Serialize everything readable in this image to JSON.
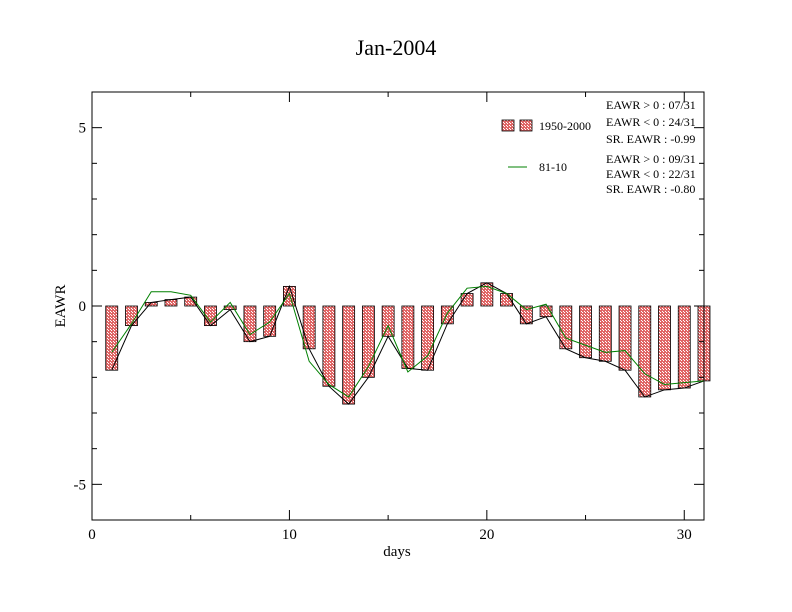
{
  "chart_data": {
    "type": "bar",
    "title": "Jan-2004",
    "xlabel": "days",
    "ylabel": "EAWR",
    "xlim": [
      0,
      31
    ],
    "ylim": [
      -6,
      6
    ],
    "x_ticks": [
      0,
      10,
      20,
      30
    ],
    "y_ticks": [
      -5,
      0,
      5
    ],
    "grid": false,
    "legend_position": "top-right",
    "days": [
      1,
      2,
      3,
      4,
      5,
      6,
      7,
      8,
      9,
      10,
      11,
      12,
      13,
      14,
      15,
      16,
      17,
      18,
      19,
      20,
      21,
      22,
      23,
      24,
      25,
      26,
      27,
      28,
      29,
      30,
      31
    ],
    "series": [
      {
        "name": "1950-2000",
        "kind": "bar",
        "color": "#e06666",
        "values": [
          -1.8,
          -0.55,
          0.1,
          0.18,
          0.25,
          -0.55,
          -0.1,
          -1.0,
          -0.85,
          0.55,
          -1.2,
          -2.25,
          -2.75,
          -2.0,
          -0.85,
          -1.75,
          -1.8,
          -0.5,
          0.35,
          0.65,
          0.35,
          -0.5,
          -0.3,
          -1.2,
          -1.45,
          -1.55,
          -1.8,
          -2.55,
          -2.35,
          -2.3,
          -2.1
        ]
      },
      {
        "name": "81-10",
        "kind": "line",
        "color": "#008000",
        "values": [
          -1.3,
          -0.5,
          0.4,
          0.4,
          0.3,
          -0.45,
          0.1,
          -0.8,
          -0.45,
          0.35,
          -1.55,
          -2.2,
          -2.55,
          -1.7,
          -0.55,
          -1.85,
          -1.4,
          -0.2,
          0.5,
          0.55,
          0.35,
          -0.1,
          0.05,
          -0.9,
          -1.1,
          -1.3,
          -1.25,
          -1.9,
          -2.2,
          -2.15,
          -2.1
        ]
      }
    ],
    "stats_1950_2000": [
      "EAWR > 0 : 07/31",
      "EAWR < 0 : 24/31",
      "SR. EAWR : -0.99"
    ],
    "stats_81_10": [
      "EAWR > 0 : 09/31",
      "EAWR < 0 : 22/31",
      "SR. EAWR : -0.80"
    ]
  }
}
